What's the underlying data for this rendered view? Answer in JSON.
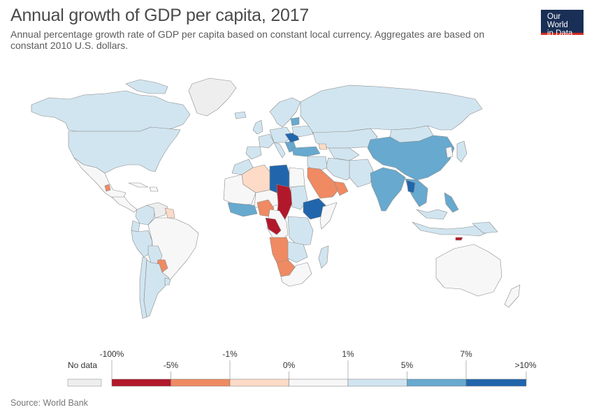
{
  "header": {
    "title": "Annual growth of GDP per capita, 2017",
    "subtitle": "Annual percentage growth rate of GDP per capita based on constant local currency. Aggregates are based on constant 2010 U.S. dollars.",
    "logo_line1": "Our World",
    "logo_line2": "in Data"
  },
  "colors": {
    "no_data": "#eeeeee",
    "bin1": "#b2182b",
    "bin2": "#ef8a62",
    "bin3": "#fddbc7",
    "bin4": "#f7f7f7",
    "bin5": "#d1e5f0",
    "bin6": "#67a9cf",
    "bin7": "#2166ac",
    "border": "#8b8b8b"
  },
  "legend": {
    "no_data_label": "No data",
    "ticks_upper": [
      "-100%",
      "-1%",
      "1%",
      "7%"
    ],
    "ticks_lower": [
      "-5%",
      "0%",
      "5%",
      ">10%"
    ]
  },
  "footer": {
    "source": "Source: World Bank"
  }
}
